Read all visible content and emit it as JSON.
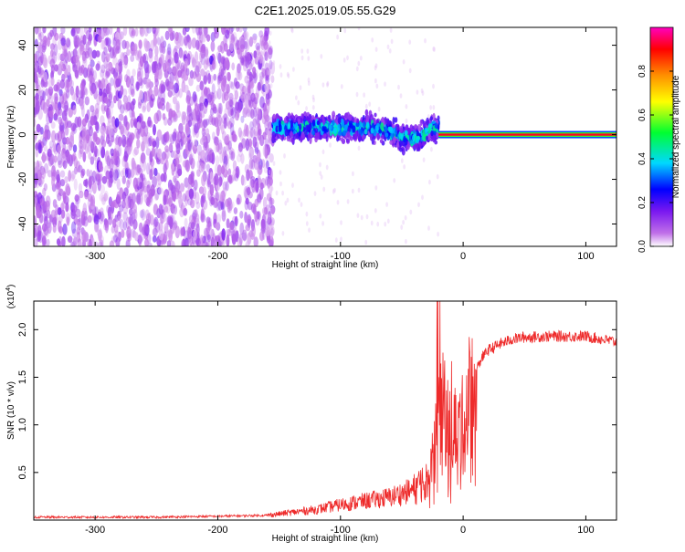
{
  "title": "C2E1.2025.019.05.55.G29",
  "colors": {
    "snr_line": "#ee2a2a",
    "colormap": [
      "#ffffff",
      "#c070e8",
      "#7a18f0",
      "#0000ff",
      "#00d8ff",
      "#00ff30",
      "#ffff00",
      "#ff9000",
      "#ff0000",
      "#ff00c0"
    ]
  },
  "chart_data": [
    {
      "type": "heatmap",
      "xlabel": "Height of straight line (km)",
      "ylabel": "Frequency (Hz)",
      "xlim": [
        -350,
        125
      ],
      "ylim": [
        -50,
        48
      ],
      "xticks": [
        -300,
        -200,
        -100,
        0,
        100
      ],
      "yticks": [
        -40,
        -20,
        0,
        20,
        40
      ],
      "colorbar": {
        "label": "Normalized spectral amplitude",
        "range": [
          0,
          1
        ],
        "ticks": [
          "0.0",
          "0.2",
          "0.4",
          "0.6",
          "0.8"
        ]
      },
      "regions": [
        {
          "x_range": [
            -350,
            -155
          ],
          "freq_range": [
            -50,
            48
          ],
          "amplitude": [
            0.02,
            0.15
          ],
          "pattern": "scattered noise"
        },
        {
          "x_range": [
            -155,
            -20
          ],
          "freq_center": 3,
          "freq_halfwidth": 5,
          "amplitude": [
            0.2,
            0.45
          ],
          "pattern": "broad band, drifting down near -70 to -30"
        },
        {
          "x_range": [
            -20,
            125
          ],
          "freq_center": 0,
          "freq_halfwidth": 1,
          "amplitude": [
            0.8,
            1.0
          ],
          "pattern": "narrow strong line"
        }
      ]
    },
    {
      "type": "line",
      "xlabel": "Height of straight line (km)",
      "ylabel": "SNR (10 * v/v)",
      "y_multiplier": "(x10",
      "y_multiplier_exp": "4",
      "xlim": [
        -350,
        125
      ],
      "ylim": [
        0,
        2.3
      ],
      "xticks": [
        -300,
        -200,
        -100,
        0,
        100
      ],
      "yticks": [
        "0.5",
        "1.0",
        "1.5",
        "2.0"
      ],
      "series": [
        {
          "x": [
            -350,
            -300,
            -250,
            -200,
            -160,
            -140,
            -120,
            -100,
            -80,
            -60,
            -40,
            -30,
            -25,
            -20,
            -15,
            -10,
            -5,
            0,
            5,
            10,
            15,
            20,
            30,
            40,
            50,
            70,
            100,
            125
          ],
          "y": [
            0.03,
            0.03,
            0.03,
            0.04,
            0.05,
            0.08,
            0.11,
            0.16,
            0.2,
            0.24,
            0.32,
            0.45,
            0.7,
            1.0,
            1.2,
            1.15,
            0.9,
            1.0,
            1.3,
            1.55,
            1.7,
            1.78,
            1.85,
            1.9,
            1.92,
            1.93,
            1.93,
            1.87
          ]
        }
      ]
    }
  ]
}
